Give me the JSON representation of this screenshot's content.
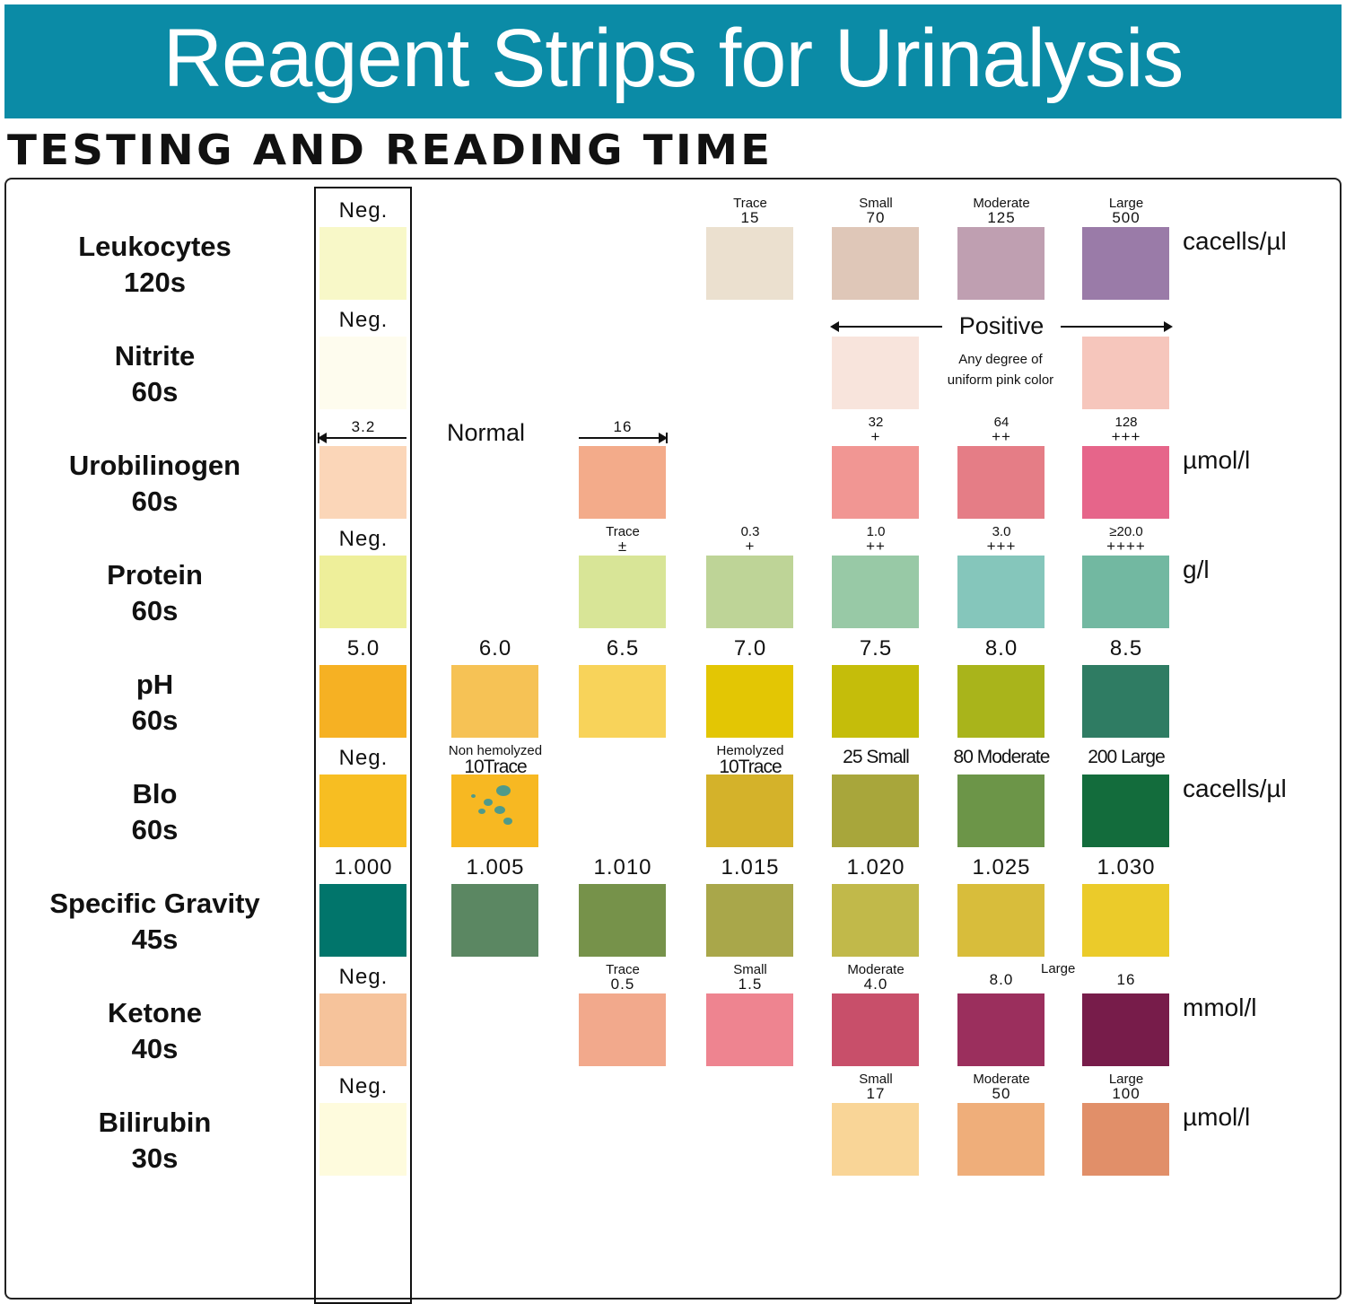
{
  "title": "Reagent Strips for Urinalysis",
  "subtitle": "TESTING AND READING TIME",
  "rows": [
    {
      "key": "leukocytes",
      "name": "Leukocytes",
      "time": "120s",
      "unit": "cacells/µl",
      "cells": [
        {
          "col": 0,
          "l2": "Neg.",
          "color": "#f8f8c8"
        },
        {
          "col": 3,
          "l1": "Trace",
          "l2": "15",
          "color": "#ebe0cf"
        },
        {
          "col": 4,
          "l1": "Small",
          "l2": "70",
          "color": "#dfc7b8"
        },
        {
          "col": 5,
          "l1": "Moderate",
          "l2": "125",
          "color": "#bf9fb1"
        },
        {
          "col": 6,
          "l1": "Large",
          "l2": "500",
          "color": "#9a7ba8"
        }
      ]
    },
    {
      "key": "nitrite",
      "name": "Nitrite",
      "time": "60s",
      "unit": "",
      "cells": [
        {
          "col": 0,
          "l2": "Neg.",
          "color": "#fefcee"
        },
        {
          "col": 4,
          "color": "#f8e4dc"
        },
        {
          "col": 6,
          "color": "#f6c6bc"
        }
      ],
      "positive_label": "Positive",
      "note_line1": "Any degree of",
      "note_line2": "uniform pink color"
    },
    {
      "key": "urobilinogen",
      "name": "Urobilinogen",
      "time": "60s",
      "unit": "µmol/l",
      "normal_label": "Normal",
      "cells": [
        {
          "col": 0,
          "l2": "3.2",
          "color": "#fbd6b8",
          "arrow": "left"
        },
        {
          "col": 2,
          "l2": "16",
          "color": "#f3ab8a",
          "arrow": "right"
        },
        {
          "col": 4,
          "l1": "32",
          "l2": "+",
          "color": "#f19693"
        },
        {
          "col": 5,
          "l1": "64",
          "l2": "++",
          "color": "#e57d86"
        },
        {
          "col": 6,
          "l1": "128",
          "l2": "+++",
          "color": "#e6658a"
        }
      ]
    },
    {
      "key": "protein",
      "name": "Protein",
      "time": "60s",
      "unit": "g/l",
      "cells": [
        {
          "col": 0,
          "l2": "Neg.",
          "color": "#eeef9a"
        },
        {
          "col": 2,
          "l1": "Trace",
          "l2": "±",
          "color": "#d8e597"
        },
        {
          "col": 3,
          "l1": "0.3",
          "l2": "+",
          "color": "#bed497"
        },
        {
          "col": 4,
          "l1": "1.0",
          "l2": "++",
          "color": "#98c9a6"
        },
        {
          "col": 5,
          "l1": "3.0",
          "l2": "+++",
          "color": "#85c6bb"
        },
        {
          "col": 6,
          "l1": "≥20.0",
          "l2": "++++",
          "color": "#72b8a1"
        }
      ]
    },
    {
      "key": "ph",
      "name": "pH",
      "time": "60s",
      "unit": "",
      "cells": [
        {
          "col": 0,
          "l2": "5.0",
          "color": "#f6b123"
        },
        {
          "col": 1,
          "l2": "6.0",
          "color": "#f6c255"
        },
        {
          "col": 2,
          "l2": "6.5",
          "color": "#f8d35a"
        },
        {
          "col": 3,
          "l2": "7.0",
          "color": "#e3c604"
        },
        {
          "col": 4,
          "l2": "7.5",
          "color": "#c5bd0a"
        },
        {
          "col": 5,
          "l2": "8.0",
          "color": "#a9b41b"
        },
        {
          "col": 6,
          "l2": "8.5",
          "color": "#2f7c63"
        }
      ]
    },
    {
      "key": "blood",
      "name": "Blo",
      "time": "60s",
      "unit": "cacells/µl",
      "cells": [
        {
          "col": 0,
          "l2": "Neg.",
          "color": "#f7be22"
        },
        {
          "col": 1,
          "l1": "Non hemolyzed",
          "l2": "10Trace",
          "color": "#f7b822",
          "spots": true
        },
        {
          "col": 3,
          "l1": "Hemolyzed",
          "l2": "10Trace",
          "color": "#d4b22a"
        },
        {
          "col": 4,
          "l2": "25 Small",
          "color": "#a8a63b"
        },
        {
          "col": 5,
          "l2": "80 Moderate",
          "color": "#6c9548"
        },
        {
          "col": 6,
          "l2": "200 Large",
          "color": "#136c3c"
        }
      ]
    },
    {
      "key": "specific-gravity",
      "name": "Specific Gravity",
      "time": "45s",
      "unit": "",
      "cells": [
        {
          "col": 0,
          "l2": "1.000",
          "color": "#01756b"
        },
        {
          "col": 1,
          "l2": "1.005",
          "color": "#5b8762"
        },
        {
          "col": 2,
          "l2": "1.010",
          "color": "#76924a"
        },
        {
          "col": 3,
          "l2": "1.015",
          "color": "#a9a74a"
        },
        {
          "col": 4,
          "l2": "1.020",
          "color": "#c1b94a"
        },
        {
          "col": 5,
          "l2": "1.025",
          "color": "#d8bd3b"
        },
        {
          "col": 6,
          "l2": "1.030",
          "color": "#ebcb2a"
        }
      ]
    },
    {
      "key": "ketone",
      "name": "Ketone",
      "time": "40s",
      "unit": "mmol/l",
      "large_label": "Large",
      "cells": [
        {
          "col": 0,
          "l2": "Neg.",
          "color": "#f6c39b"
        },
        {
          "col": 2,
          "l1": "Trace",
          "l2": "0.5",
          "color": "#f2a98c"
        },
        {
          "col": 3,
          "l1": "Small",
          "l2": "1.5",
          "color": "#ee8490"
        },
        {
          "col": 4,
          "l1": "Moderate",
          "l2": "4.0",
          "color": "#c84f6a"
        },
        {
          "col": 5,
          "l2": "8.0",
          "color": "#9b2f5d"
        },
        {
          "col": 6,
          "l2": "16",
          "color": "#771c4a"
        }
      ]
    },
    {
      "key": "bilirubin",
      "name": "Bilirubin",
      "time": "30s",
      "unit": "µmol/l",
      "cells": [
        {
          "col": 0,
          "l2": "Neg.",
          "color": "#fefbdd"
        },
        {
          "col": 4,
          "l1": "Small",
          "l2": "17",
          "color": "#f9d597"
        },
        {
          "col": 5,
          "l1": "Moderate",
          "l2": "50",
          "color": "#efae7a"
        },
        {
          "col": 6,
          "l1": "Large",
          "l2": "100",
          "color": "#e18f69"
        }
      ]
    }
  ]
}
